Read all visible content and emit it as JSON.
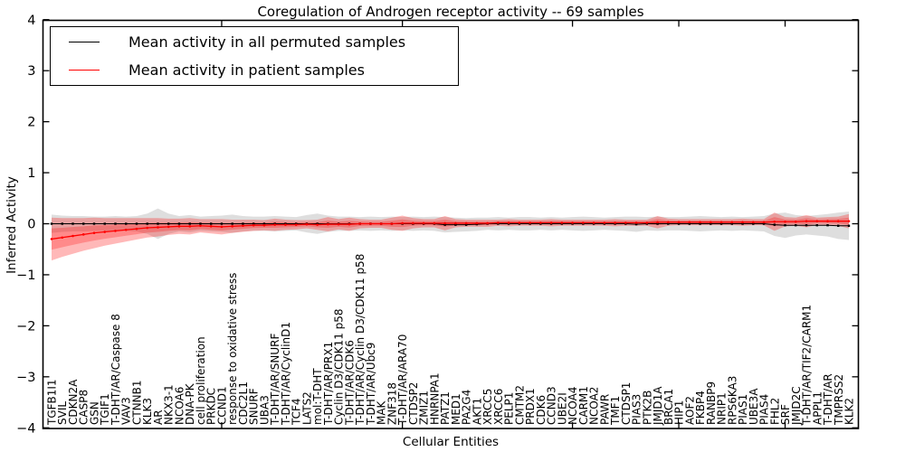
{
  "title": "Coregulation of Androgen receptor activity -- 69 samples",
  "chart_data": {
    "type": "line",
    "title": "Coregulation of Androgen receptor activity -- 69 samples",
    "xlabel": "Cellular Entities",
    "ylabel": "Inferred Activity",
    "ylim": [
      -4,
      4
    ],
    "yticks": [
      -4,
      -3,
      -2,
      -1,
      0,
      1,
      2,
      3,
      4
    ],
    "xtick_indices": [
      16,
      33,
      49,
      59,
      69
    ],
    "grid": false,
    "legend_position": "upper left",
    "colors": {
      "permuted_line": "#000000",
      "patient_line": "#ff0000",
      "permuted_band": "rgba(0,0,0,0.13)",
      "patient_band": "rgba(255,0,0,0.28)",
      "patient_band_inner": "rgba(255,0,0,0.25)"
    },
    "categories": [
      "TGFB1I1",
      "SVIL",
      "CDKN2A",
      "CASP8",
      "GSN",
      "TGIF1",
      "T-DHT/AR/Caspase 8",
      "VAV3",
      "CTNNB1",
      "KLK3",
      "AR",
      "NKX3-1",
      "NCOA6",
      "DNA-PK",
      "cell proliferation",
      "PRKDC",
      "CCND1",
      "response to oxidative stress",
      "CDC2L1",
      "SNURF",
      "UBA3",
      "T-DHT/AR/SNURF",
      "T-DHT/AR/CyclinD1",
      "TCF4",
      "LATS2",
      "mol:T-DHT",
      "T-DHT/AR/PRX1",
      "Cyclin D3/CDK11 p58",
      "T-DHT/AR/CDK6",
      "T-DHT/AR/Cyclin D3/CDK11 p58",
      "T-DHT/AR/Ubc9",
      "MAK",
      "ZNF318",
      "T-DHT/AR/ARA70",
      "CTDSP2",
      "ZMIZ1",
      "HNRNPA1",
      "PATZ1",
      "MED1",
      "PA2G4",
      "AKT1",
      "XRCC5",
      "XRCC6",
      "PELP1",
      "CMTM2",
      "PRDX1",
      "CDK6",
      "CCND3",
      "UBE2I",
      "NCOA4",
      "CARM1",
      "NCOA2",
      "PAWR",
      "TMF1",
      "CTDSP1",
      "PIAS3",
      "PTK2B",
      "JMJD1A",
      "BRCA1",
      "HIP1",
      "AOF2",
      "FKBP4",
      "RANBP9",
      "NRIP1",
      "RPS6KA3",
      "PIAS1",
      "UBE3A",
      "PIAS4",
      "FHL2",
      "SRF",
      "JMJD2C",
      "T-DHT/AR/TIF2/CARM1",
      "APPL1",
      "T-DHT/AR",
      "TMPRSS2",
      "KLK2"
    ],
    "legend": [
      {
        "label": "Mean activity in all permuted samples",
        "color": "#000000"
      },
      {
        "label": "Mean activity in patient samples",
        "color": "#ff0000"
      }
    ],
    "series": [
      {
        "name": "Mean activity in all permuted samples",
        "mean": [
          0,
          0,
          0,
          0,
          0,
          0,
          0,
          0,
          0,
          0,
          0,
          0,
          0,
          0,
          0,
          0,
          0,
          0,
          0,
          0,
          0,
          0,
          0,
          0,
          0,
          0,
          0,
          0,
          0,
          0,
          0,
          0,
          0,
          0,
          0,
          0,
          0,
          -0.02,
          -0.02,
          -0.02,
          -0.01,
          0,
          0,
          0,
          0,
          0,
          0,
          0,
          0,
          0,
          0,
          0,
          0,
          0,
          0,
          -0.01,
          0,
          0,
          0,
          0,
          0,
          0,
          0,
          0,
          0,
          0,
          0,
          0,
          -0.02,
          -0.03,
          -0.03,
          -0.03,
          -0.03,
          -0.03,
          -0.04,
          -0.04
        ],
        "std": [
          0.18,
          0.16,
          0.15,
          0.15,
          0.14,
          0.14,
          0.15,
          0.14,
          0.15,
          0.2,
          0.3,
          0.2,
          0.15,
          0.17,
          0.14,
          0.15,
          0.16,
          0.18,
          0.15,
          0.14,
          0.14,
          0.15,
          0.14,
          0.13,
          0.17,
          0.2,
          0.16,
          0.14,
          0.14,
          0.13,
          0.14,
          0.13,
          0.14,
          0.13,
          0.14,
          0.13,
          0.14,
          0.15,
          0.14,
          0.13,
          0.13,
          0.12,
          0.13,
          0.12,
          0.13,
          0.13,
          0.12,
          0.13,
          0.12,
          0.13,
          0.14,
          0.13,
          0.12,
          0.13,
          0.14,
          0.15,
          0.13,
          0.14,
          0.13,
          0.13,
          0.14,
          0.15,
          0.14,
          0.13,
          0.14,
          0.13,
          0.14,
          0.15,
          0.22,
          0.25,
          0.2,
          0.18,
          0.2,
          0.22,
          0.26,
          0.28
        ]
      },
      {
        "name": "Mean activity in patient samples",
        "mean": [
          -0.3,
          -0.27,
          -0.24,
          -0.21,
          -0.18,
          -0.16,
          -0.14,
          -0.12,
          -0.1,
          -0.08,
          -0.07,
          -0.06,
          -0.05,
          -0.05,
          -0.04,
          -0.05,
          -0.06,
          -0.05,
          -0.04,
          -0.03,
          -0.03,
          -0.02,
          -0.02,
          -0.02,
          -0.01,
          -0.02,
          -0.01,
          -0.01,
          -0.01,
          0.0,
          0.0,
          0.0,
          0.0,
          0.01,
          0.01,
          0.01,
          0.01,
          0.01,
          0.01,
          0.01,
          0.01,
          0.01,
          0.02,
          0.02,
          0.02,
          0.02,
          0.02,
          0.02,
          0.02,
          0.02,
          0.02,
          0.02,
          0.02,
          0.02,
          0.02,
          0.02,
          0.02,
          0.03,
          0.03,
          0.03,
          0.03,
          0.03,
          0.03,
          0.03,
          0.03,
          0.03,
          0.03,
          0.03,
          0.04,
          0.04,
          0.04,
          0.05,
          0.05,
          0.05,
          0.05,
          0.05
        ],
        "std": [
          0.42,
          0.38,
          0.35,
          0.32,
          0.3,
          0.27,
          0.25,
          0.23,
          0.21,
          0.19,
          0.18,
          0.16,
          0.15,
          0.16,
          0.13,
          0.14,
          0.15,
          0.13,
          0.12,
          0.11,
          0.1,
          0.12,
          0.1,
          0.09,
          0.08,
          0.1,
          0.14,
          0.1,
          0.13,
          0.09,
          0.08,
          0.08,
          0.12,
          0.15,
          0.1,
          0.08,
          0.08,
          0.14,
          0.08,
          0.07,
          0.07,
          0.07,
          0.06,
          0.07,
          0.06,
          0.06,
          0.06,
          0.07,
          0.06,
          0.06,
          0.06,
          0.06,
          0.06,
          0.07,
          0.06,
          0.06,
          0.06,
          0.12,
          0.07,
          0.06,
          0.06,
          0.06,
          0.06,
          0.06,
          0.06,
          0.07,
          0.06,
          0.06,
          0.18,
          0.09,
          0.08,
          0.12,
          0.07,
          0.08,
          0.09,
          0.14
        ]
      }
    ]
  }
}
